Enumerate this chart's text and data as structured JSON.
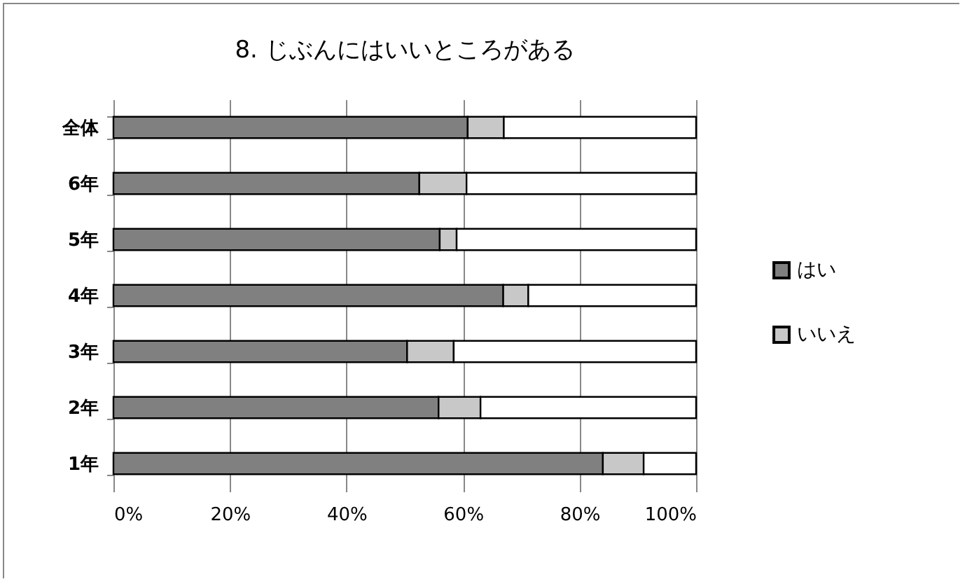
{
  "chart_data": {
    "type": "bar",
    "title": "8. じぶんにはいいところがある",
    "orientation": "horizontal",
    "stacked": true,
    "categories": [
      "全体",
      "6年",
      "5年",
      "4年",
      "3年",
      "2年",
      "1年"
    ],
    "series": [
      {
        "name": "はい",
        "color": "#808080",
        "values": [
          60.8,
          52.5,
          56.0,
          66.9,
          50.4,
          55.8,
          84.0
        ]
      },
      {
        "name": "いいえ",
        "color": "#c8c8c8",
        "values": [
          6.2,
          8.1,
          2.9,
          4.3,
          8.0,
          7.2,
          7.0
        ]
      },
      {
        "color": "#ffffff",
        "values": [
          33.0,
          39.4,
          41.1,
          28.8,
          41.6,
          37.0,
          9.0
        ]
      }
    ],
    "xlim": [
      0,
      100
    ],
    "xticks": [
      {
        "value": 0,
        "label": "0%"
      },
      {
        "value": 20,
        "label": "20%"
      },
      {
        "value": 40,
        "label": "40%"
      },
      {
        "value": 60,
        "label": "60%"
      },
      {
        "value": 80,
        "label": "80%"
      },
      {
        "value": 100,
        "label": "100%"
      }
    ],
    "grid": "x",
    "legend": "right"
  }
}
